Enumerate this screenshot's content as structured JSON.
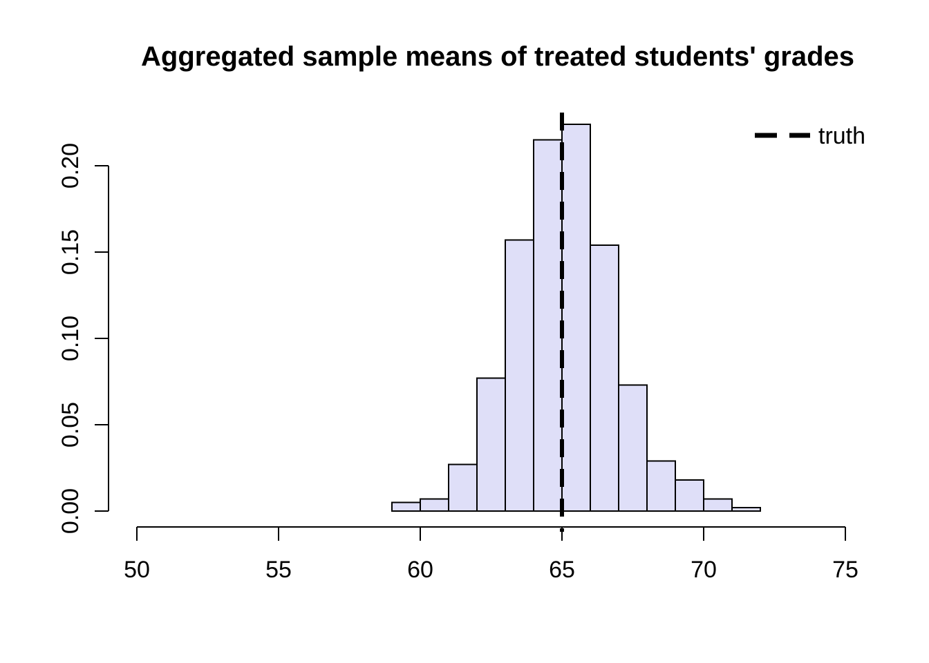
{
  "chart_data": {
    "type": "bar",
    "subtype": "histogram-density",
    "title": "Aggregated sample means of treated students' grades",
    "xlabel": "",
    "ylabel": "",
    "xlim": [
      50,
      75
    ],
    "ylim": [
      0,
      0.2
    ],
    "grid": "off",
    "x_ticks": [
      50,
      55,
      60,
      65,
      70,
      75
    ],
    "y_ticks": [
      {
        "value": 0.0,
        "label": "0.00"
      },
      {
        "value": 0.05,
        "label": "0.05"
      },
      {
        "value": 0.1,
        "label": "0.10"
      },
      {
        "value": 0.15,
        "label": "0.15"
      },
      {
        "value": 0.2,
        "label": "0.20"
      }
    ],
    "bin_width": 1,
    "bins": [
      {
        "from": 59,
        "to": 60,
        "density": 0.005
      },
      {
        "from": 60,
        "to": 61,
        "density": 0.007
      },
      {
        "from": 61,
        "to": 62,
        "density": 0.027
      },
      {
        "from": 62,
        "to": 63,
        "density": 0.077
      },
      {
        "from": 63,
        "to": 64,
        "density": 0.157
      },
      {
        "from": 64,
        "to": 65,
        "density": 0.215
      },
      {
        "from": 65,
        "to": 66,
        "density": 0.224
      },
      {
        "from": 66,
        "to": 67,
        "density": 0.154
      },
      {
        "from": 67,
        "to": 68,
        "density": 0.073
      },
      {
        "from": 68,
        "to": 69,
        "density": 0.029
      },
      {
        "from": 69,
        "to": 70,
        "density": 0.018
      },
      {
        "from": 70,
        "to": 71,
        "density": 0.007
      },
      {
        "from": 71,
        "to": 72,
        "density": 0.002
      }
    ],
    "colors": {
      "bar_fill": "#DFDFF8",
      "bar_border": "#000000",
      "axis": "#000000",
      "vline": "#000000",
      "text": "#000000"
    },
    "vline": {
      "x": 65,
      "style": "dashed"
    },
    "legend": {
      "position": "topright",
      "entries": [
        {
          "label": "truth",
          "line_style": "dashed",
          "color": "#000000"
        }
      ]
    }
  }
}
